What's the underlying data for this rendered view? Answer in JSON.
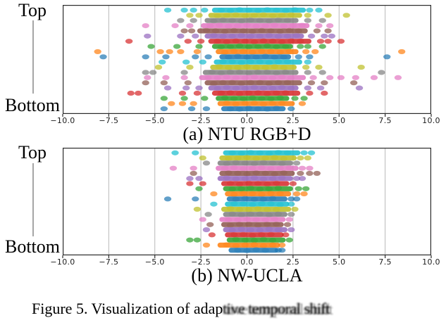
{
  "figure": {
    "background": "#ffffff"
  },
  "caption": {
    "clear": "Figure 5. Visualization of adap",
    "blurred": "tive temporal shift",
    "full": "Figure 5. Visualization of adaptive temporal shift"
  },
  "palette": {
    "cyan": "#17becf",
    "olive": "#bcbd22",
    "gray": "#7f7f7f",
    "pink": "#e377c2",
    "brown": "#8c564b",
    "purple": "#9467bd",
    "red": "#d62728",
    "green": "#2ca02c",
    "orange": "#ff7f0e",
    "blue": "#1f77b4"
  },
  "style": {
    "grid_color": "#b9b9b9",
    "spine_color": "#2b2b2b",
    "axis_connector_color": "#a6a6a6"
  },
  "chart_data": [
    {
      "type": "scatter",
      "subtitle": "(a) NTU RGB+D",
      "xlim": [
        -10,
        10
      ],
      "x_tick_values": [
        -10,
        -7.5,
        -5,
        -2.5,
        0,
        2.5,
        5,
        7.5,
        10
      ],
      "x_tick_labels": [
        "−10.0",
        "−7.5",
        "−5.0",
        "−2.5",
        "0.0",
        "2.5",
        "5.0",
        "7.5",
        "10.0"
      ],
      "y_axis_labels": {
        "top": "Top",
        "bottom": "Bottom"
      },
      "grid": "vertical",
      "note": "Each row is a channel; band = dense range of overlapping points, dots = isolated points (x in data units).",
      "rows": [
        {
          "color": "cyan",
          "band": [
            -1.7,
            3.0
          ],
          "dots": [
            -4.3,
            -3.4,
            -2.9,
            -2.3,
            3.4,
            3.9
          ]
        },
        {
          "color": "olive",
          "band": [
            -1.9,
            2.8
          ],
          "dots": [
            -3.1,
            -2.6,
            3.3,
            4.4,
            5.4
          ]
        },
        {
          "color": "gray",
          "band": [
            -2.1,
            2.6
          ],
          "dots": [
            -3.6,
            -2.9,
            3.3,
            4.1
          ]
        },
        {
          "color": "pink",
          "band": [
            -2.3,
            3.2
          ],
          "dots": [
            -5.5,
            -3.9,
            -3.1,
            3.9,
            4.5
          ]
        },
        {
          "color": "brown",
          "band": [
            -2.5,
            3.1
          ],
          "dots": [
            -3.4,
            -3.0,
            3.8,
            4.4
          ]
        },
        {
          "color": "purple",
          "band": [
            -2.1,
            2.9
          ],
          "dots": [
            -5.4,
            -3.6,
            -2.8,
            3.5,
            4.2,
            4.6
          ]
        },
        {
          "color": "red",
          "band": [
            -1.9,
            3.3
          ],
          "dots": [
            -6.4,
            -3.2,
            -2.5,
            4.0,
            4.4,
            5.1
          ]
        },
        {
          "color": "green",
          "band": [
            -1.7,
            2.3
          ],
          "dots": [
            -5.2,
            -3.8,
            -2.6,
            2.9,
            3.3,
            4.1
          ]
        },
        {
          "color": "orange",
          "band": [
            -1.5,
            2.6
          ],
          "dots": [
            -8.1,
            -4.7,
            -4.2,
            -3.6,
            -2.7,
            3.2,
            3.7,
            8.4
          ]
        },
        {
          "color": "blue",
          "band": [
            -1.3,
            2.2
          ],
          "dots": [
            -7.8,
            -5.5,
            -4.4,
            -2.8,
            -2.1,
            2.8,
            3.4,
            7.6
          ]
        },
        {
          "color": "cyan",
          "band": [
            -1.6,
            2.8
          ],
          "dots": [
            -4.6,
            -3.3,
            -2.4,
            3.3
          ]
        },
        {
          "color": "olive",
          "band": [
            -1.8,
            2.5
          ],
          "dots": [
            -4.8,
            -3.1,
            3.2,
            3.9,
            6.2
          ]
        },
        {
          "color": "gray",
          "band": [
            -2.2,
            2.6
          ],
          "dots": [
            -5.5,
            -5.1,
            -3.4,
            3.3,
            4.1,
            7.3
          ]
        },
        {
          "color": "pink",
          "band": [
            -2.4,
            3.0
          ],
          "dots": [
            -5.4,
            -4.4,
            -3.4,
            3.6,
            4.5,
            5.1,
            5.9,
            6.9,
            8.2
          ]
        },
        {
          "color": "brown",
          "band": [
            -2.1,
            2.8
          ],
          "dots": [
            -5.5,
            -4.5,
            -3.2,
            3.5,
            4.2,
            5.8
          ]
        },
        {
          "color": "purple",
          "band": [
            -1.9,
            2.6
          ],
          "dots": [
            -4.3,
            -3.3,
            -2.6,
            3.3,
            4.0,
            6.1
          ]
        },
        {
          "color": "red",
          "band": [
            -1.7,
            2.7
          ],
          "dots": [
            -6.3,
            -5.9,
            -3.5,
            -2.7,
            3.4,
            4.2
          ]
        },
        {
          "color": "green",
          "band": [
            -1.5,
            2.1
          ],
          "dots": [
            -4.5,
            -3.4,
            -2.3,
            2.6,
            3.1
          ]
        },
        {
          "color": "orange",
          "band": [
            -1.4,
            2.4
          ],
          "dots": [
            -4.1,
            -3.5,
            -2.9,
            3.0
          ]
        },
        {
          "color": "blue",
          "band": [
            -1.2,
            1.9
          ],
          "dots": [
            -4.5,
            -3.0,
            -2.2,
            2.4
          ]
        }
      ]
    },
    {
      "type": "scatter",
      "subtitle": "(b) NW-UCLA",
      "xlim": [
        -10,
        10
      ],
      "x_tick_values": [
        -10,
        -7.5,
        -5,
        -2.5,
        0,
        2.5,
        5,
        7.5,
        10
      ],
      "x_tick_labels": [
        "−10.0",
        "−7.5",
        "−5.0",
        "−2.5",
        "0.0",
        "2.5",
        "5.0",
        "7.5",
        "10.0"
      ],
      "y_axis_labels": {
        "top": "Top",
        "bottom": "Bottom"
      },
      "grid": "vertical",
      "note": "Each row is a channel; band = dense range of overlapping points, dots = isolated points (x in data units).",
      "rows": [
        {
          "color": "cyan",
          "band": [
            -1.1,
            2.7
          ],
          "dots": [
            -3.9,
            -2.8,
            3.1,
            3.5
          ]
        },
        {
          "color": "olive",
          "band": [
            -1.3,
            2.5
          ],
          "dots": [
            -2.4,
            2.9,
            3.3
          ]
        },
        {
          "color": "gray",
          "band": [
            -1.4,
            2.3
          ],
          "dots": [
            -2.2,
            2.7
          ]
        },
        {
          "color": "pink",
          "band": [
            -1.5,
            2.6
          ],
          "dots": [
            -4.0,
            -2.9,
            3.0,
            3.4
          ]
        },
        {
          "color": "brown",
          "band": [
            -1.3,
            2.4
          ],
          "dots": [
            -2.9,
            2.9,
            3.4,
            3.8
          ]
        },
        {
          "color": "purple",
          "band": [
            -1.4,
            2.3
          ],
          "dots": [
            -3.1,
            -2.6,
            2.7,
            3.0
          ]
        },
        {
          "color": "red",
          "band": [
            -1.2,
            2.1
          ],
          "dots": [
            -3.1,
            -2.4,
            2.5
          ]
        },
        {
          "color": "green",
          "band": [
            -1.1,
            2.3
          ],
          "dots": [
            -2.6,
            2.8,
            3.2
          ]
        },
        {
          "color": "orange",
          "band": [
            -1.0,
            2.2
          ],
          "dots": [
            -1.8,
            2.7,
            3.1
          ]
        },
        {
          "color": "blue",
          "band": [
            -0.9,
            2.0
          ],
          "dots": [
            -4.3,
            -2.8,
            2.4,
            2.7
          ]
        },
        {
          "color": "cyan",
          "band": [
            -1.0,
            2.1
          ],
          "dots": [
            -1.8,
            2.4
          ]
        },
        {
          "color": "olive",
          "band": [
            -1.2,
            2.2
          ],
          "dots": [
            -2.7,
            2.6
          ]
        },
        {
          "color": "gray",
          "band": [
            -1.1,
            2.0
          ],
          "dots": [
            -2.1,
            2.4
          ]
        },
        {
          "color": "pink",
          "band": [
            -1.3,
            1.9
          ],
          "dots": [
            -2.4,
            2.3
          ]
        },
        {
          "color": "brown",
          "band": [
            -1.2,
            1.8
          ],
          "dots": [
            -2.0,
            2.2
          ]
        },
        {
          "color": "purple",
          "band": [
            -1.1,
            2.0
          ],
          "dots": [
            -2.2,
            2.4
          ]
        },
        {
          "color": "red",
          "band": [
            -1.0,
            1.8
          ],
          "dots": [
            -1.9,
            2.1
          ]
        },
        {
          "color": "green",
          "band": [
            -0.9,
            1.9
          ],
          "dots": [
            -3.1,
            -2.7,
            2.3
          ]
        },
        {
          "color": "orange",
          "band": [
            -1.4,
            1.6
          ],
          "dots": [
            -2.2,
            1.9
          ]
        },
        {
          "color": "blue",
          "band": [
            -0.8,
            1.5
          ],
          "dots": [
            1.7,
            1.9
          ]
        }
      ]
    }
  ]
}
